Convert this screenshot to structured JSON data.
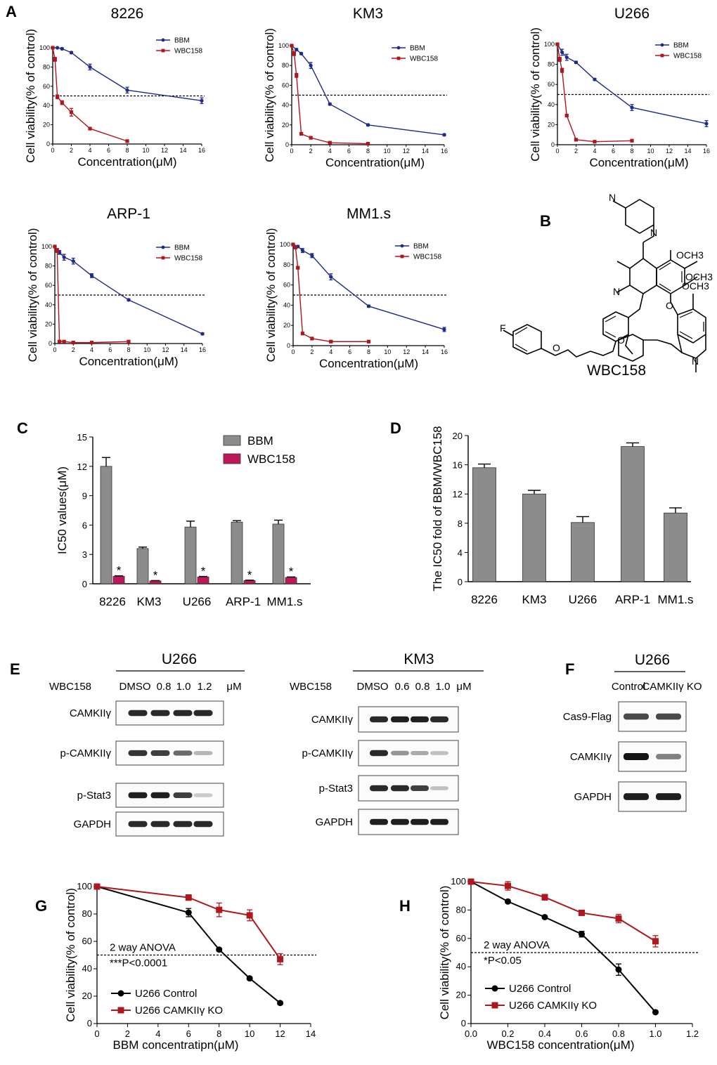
{
  "colors": {
    "bbm": "#1f2a8a",
    "wbc": "#b0161e",
    "bar_gray": "#8c8c8c",
    "bar_pink": "#c0175a",
    "ctrl": "#000000",
    "ko": "#b0161e"
  },
  "panel_letters": {
    "A": "A",
    "B": "B",
    "C": "C",
    "D": "D",
    "E": "E",
    "F": "F",
    "G": "G",
    "H": "H"
  },
  "chart_data": [
    {
      "id": "A1",
      "type": "line",
      "title": "8226",
      "xlabel": "Concentration(μM)",
      "ylabel": "Cell viability(% of control)",
      "xlim": [
        0,
        16
      ],
      "xticks": [
        0,
        2,
        4,
        6,
        8,
        10,
        12,
        14,
        16
      ],
      "ylim": [
        0,
        100
      ],
      "yticks": [
        0,
        20,
        40,
        60,
        80,
        100
      ],
      "hline": 50,
      "legend_position": "top-right",
      "series": [
        {
          "name": "BBM",
          "x": [
            0,
            0.5,
            1,
            2,
            4,
            8,
            16
          ],
          "y": [
            100,
            100,
            99,
            95,
            80,
            56,
            45
          ],
          "err": [
            0,
            0,
            1,
            1,
            3,
            3,
            3
          ]
        },
        {
          "name": "WBC158",
          "x": [
            0,
            0.25,
            0.5,
            1,
            2,
            4,
            8
          ],
          "y": [
            100,
            88,
            49,
            43,
            33,
            16,
            3
          ],
          "err": [
            0,
            2,
            2,
            2,
            4,
            1,
            1
          ]
        }
      ]
    },
    {
      "id": "A2",
      "type": "line",
      "title": "KM3",
      "xlabel": "Concentration(μM)",
      "ylabel": "Cell viability(% of control)",
      "xlim": [
        0,
        16
      ],
      "xticks": [
        0,
        2,
        4,
        6,
        8,
        10,
        12,
        14,
        16
      ],
      "ylim": [
        0,
        100
      ],
      "yticks": [
        0,
        20,
        40,
        60,
        80,
        100
      ],
      "hline": 50,
      "legend_position": "top-right",
      "series": [
        {
          "name": "BBM",
          "x": [
            0,
            0.5,
            1,
            2,
            4,
            8,
            16
          ],
          "y": [
            100,
            96,
            92,
            80,
            41,
            20,
            10
          ],
          "err": [
            0,
            1,
            1,
            3,
            1,
            1,
            1
          ]
        },
        {
          "name": "WBC158",
          "x": [
            0,
            0.25,
            0.5,
            1,
            2,
            4,
            8
          ],
          "y": [
            100,
            92,
            70,
            11,
            7,
            2,
            1
          ],
          "err": [
            0,
            2,
            2,
            1,
            1,
            1,
            1
          ]
        }
      ]
    },
    {
      "id": "A3",
      "type": "line",
      "title": "U266",
      "xlabel": "Concentration(μM)",
      "ylabel": "Cell viability(% of control)",
      "xlim": [
        0,
        16
      ],
      "xticks": [
        0,
        2,
        4,
        6,
        8,
        10,
        12,
        14,
        16
      ],
      "ylim": [
        0,
        100
      ],
      "yticks": [
        0,
        20,
        40,
        60,
        80,
        100
      ],
      "hline": 50,
      "legend_position": "top-right",
      "series": [
        {
          "name": "BBM",
          "x": [
            0,
            0.5,
            1,
            2,
            4,
            8,
            16
          ],
          "y": [
            100,
            92,
            87,
            82,
            65,
            37,
            21
          ],
          "err": [
            0,
            3,
            3,
            1,
            1,
            3,
            3
          ]
        },
        {
          "name": "WBC158",
          "x": [
            0,
            0.25,
            0.5,
            1,
            2,
            4,
            8
          ],
          "y": [
            100,
            85,
            74,
            29,
            5,
            3,
            4
          ],
          "err": [
            0,
            2,
            2,
            1,
            1,
            1,
            1
          ]
        }
      ]
    },
    {
      "id": "A4",
      "type": "line",
      "title": "ARP-1",
      "xlabel": "Concentration(μM)",
      "ylabel": "Cell viability(% of control)",
      "xlim": [
        0,
        16
      ],
      "xticks": [
        0,
        2,
        4,
        6,
        8,
        10,
        12,
        14,
        16
      ],
      "ylim": [
        0,
        100
      ],
      "yticks": [
        0,
        20,
        40,
        60,
        80,
        100
      ],
      "hline": 50,
      "legend_position": "top-right",
      "series": [
        {
          "name": "BBM",
          "x": [
            0,
            0.5,
            1,
            2,
            4,
            8,
            16
          ],
          "y": [
            100,
            94,
            89,
            85,
            70,
            45,
            10
          ],
          "err": [
            0,
            2,
            3,
            3,
            2,
            1,
            1
          ]
        },
        {
          "name": "WBC158",
          "x": [
            0,
            0.25,
            0.5,
            1,
            2,
            4,
            8
          ],
          "y": [
            100,
            96,
            2,
            2,
            1,
            1,
            2
          ],
          "err": [
            0,
            2,
            1,
            1,
            1,
            1,
            1
          ]
        }
      ]
    },
    {
      "id": "A5",
      "type": "line",
      "title": "MM1.s",
      "xlabel": "Concentration(μM)",
      "ylabel": "Cell viability(% of control)",
      "xlim": [
        0,
        16
      ],
      "xticks": [
        0,
        2,
        4,
        6,
        8,
        10,
        12,
        14,
        16
      ],
      "ylim": [
        0,
        100
      ],
      "yticks": [
        0,
        20,
        40,
        60,
        80,
        100
      ],
      "hline": 50,
      "legend_position": "top-right",
      "series": [
        {
          "name": "BBM",
          "x": [
            0,
            0.5,
            1,
            2,
            4,
            8,
            16
          ],
          "y": [
            100,
            98,
            94,
            89,
            68,
            39,
            16
          ],
          "err": [
            0,
            1,
            2,
            2,
            3,
            1,
            2
          ]
        },
        {
          "name": "WBC158",
          "x": [
            0,
            0.25,
            0.5,
            1,
            2,
            4,
            8
          ],
          "y": [
            100,
            97,
            77,
            12,
            7,
            4,
            4
          ],
          "err": [
            0,
            1,
            1,
            1,
            1,
            1,
            1
          ]
        }
      ]
    },
    {
      "id": "C",
      "type": "bar",
      "xlabel": "",
      "ylabel": "IC50 values(μM)",
      "ylim": [
        0,
        15
      ],
      "yticks": [
        0,
        3,
        6,
        9,
        12,
        15
      ],
      "legend_position": "top-right",
      "categories": [
        "8226",
        "KM3",
        "U266",
        "ARP-1",
        "MM1.s"
      ],
      "series": [
        {
          "name": "BBM",
          "values": [
            12.0,
            3.6,
            5.8,
            6.3,
            6.1
          ],
          "err": [
            0.9,
            0.15,
            0.6,
            0.15,
            0.4
          ]
        },
        {
          "name": "WBC158",
          "values": [
            0.77,
            0.3,
            0.7,
            0.34,
            0.65
          ],
          "err": [
            0.05,
            0.03,
            0.05,
            0.03,
            0.05
          ]
        }
      ],
      "annotations": [
        "*",
        "*",
        "*",
        "*",
        "*"
      ]
    },
    {
      "id": "D",
      "type": "bar",
      "xlabel": "",
      "ylabel": "The IC50 fold of BBM/WBC158",
      "ylim": [
        0,
        20
      ],
      "yticks": [
        0,
        4,
        8,
        12,
        16,
        20
      ],
      "categories": [
        "8226",
        "KM3",
        "U266",
        "ARP-1",
        "MM1.s"
      ],
      "values": [
        15.6,
        12.0,
        8.1,
        18.5,
        9.4
      ],
      "err": [
        0.5,
        0.5,
        0.8,
        0.5,
        0.7
      ]
    },
    {
      "id": "G",
      "type": "line",
      "xlabel": "BBM concentratipn(μM)",
      "ylabel": "Cell viability(% of control)",
      "xlim": [
        0,
        14
      ],
      "xticks": [
        0,
        2,
        4,
        6,
        8,
        10,
        12,
        14
      ],
      "ylim": [
        0,
        100
      ],
      "yticks": [
        0,
        20,
        40,
        60,
        80,
        100
      ],
      "hline": 50,
      "legend_position": "bottom-left",
      "annotations": [
        "2 way ANOVA",
        "***P<0.0001"
      ],
      "series": [
        {
          "name": "U266 Control",
          "x": [
            0,
            6,
            8,
            10,
            12
          ],
          "y": [
            100,
            81,
            54,
            33,
            15
          ],
          "err": [
            0,
            3,
            1,
            1,
            1
          ]
        },
        {
          "name": "U266 CAMKIIγ  KO",
          "x": [
            0,
            6,
            8,
            10,
            12
          ],
          "y": [
            100,
            92,
            83,
            79,
            47
          ],
          "err": [
            0,
            2,
            5,
            4,
            4
          ]
        }
      ]
    },
    {
      "id": "H",
      "type": "line",
      "xlabel": "WBC158 concentration(μM)",
      "ylabel": "Cell viability(% of control)",
      "xlim": [
        0,
        1.2
      ],
      "xticks": [
        "0.0",
        "0.2",
        "0.4",
        "0.6",
        "0.8",
        "1.0",
        "1.2"
      ],
      "ylim": [
        0,
        100
      ],
      "yticks": [
        0,
        20,
        40,
        60,
        80,
        100
      ],
      "hline": 50,
      "legend_position": "bottom-left",
      "annotations": [
        "2 way ANOVA",
        "*P<0.05"
      ],
      "series": [
        {
          "name": "U266 Control",
          "x": [
            0,
            0.2,
            0.4,
            0.6,
            0.8,
            1.0
          ],
          "y": [
            100,
            86,
            75,
            63,
            38,
            8
          ],
          "err": [
            0,
            1,
            1,
            2,
            4,
            1
          ]
        },
        {
          "name": "U266 CAMKIIγ  KO",
          "x": [
            0,
            0.2,
            0.4,
            0.6,
            0.8,
            1.0
          ],
          "y": [
            100,
            97,
            89,
            78,
            74,
            58
          ],
          "err": [
            0,
            3,
            2,
            1,
            3,
            4
          ]
        }
      ]
    }
  ],
  "structure": {
    "label": "WBC158",
    "atoms": [
      "F",
      "O",
      "O",
      "O",
      "N",
      "N",
      "N",
      "N",
      "OCH3",
      "OCH3",
      "OCH3"
    ]
  },
  "blots": {
    "E1": {
      "title": "U266",
      "treat_label": "WBC158",
      "conditions": [
        "DMSO",
        "0.8",
        "1.0",
        "1.2",
        "μM"
      ],
      "rows": [
        {
          "label": "CAMKIIγ",
          "intensity": [
            0.9,
            0.9,
            0.9,
            0.9
          ]
        },
        {
          "label": "p-CAMKIIγ",
          "intensity": [
            0.85,
            0.8,
            0.6,
            0.25
          ]
        },
        {
          "label": "p-Stat3",
          "intensity": [
            0.95,
            0.95,
            0.8,
            0.15
          ]
        },
        {
          "label": "GAPDH",
          "intensity": [
            0.9,
            0.9,
            0.9,
            0.9
          ]
        }
      ]
    },
    "E2": {
      "title": "KM3",
      "treat_label": "WBC158",
      "conditions": [
        "DMSO",
        "0.6",
        "0.8",
        "1.0",
        "μM"
      ],
      "rows": [
        {
          "label": "CAMKIIγ",
          "intensity": [
            0.9,
            0.95,
            0.95,
            0.9
          ]
        },
        {
          "label": "p-CAMKIIγ",
          "intensity": [
            0.9,
            0.4,
            0.3,
            0.2
          ]
        },
        {
          "label": "p-Stat3",
          "intensity": [
            0.9,
            0.9,
            0.8,
            0.2
          ]
        },
        {
          "label": "GAPDH",
          "intensity": [
            0.95,
            0.95,
            0.95,
            0.95
          ]
        }
      ]
    },
    "F": {
      "title": "U266",
      "conditions": [
        "Control",
        "CAMKIIγ KO"
      ],
      "rows": [
        {
          "label": "Cas9-Flag",
          "intensity": [
            0.75,
            0.75
          ]
        },
        {
          "label": "CAMKIIγ",
          "intensity": [
            1.0,
            0.5
          ]
        },
        {
          "label": "GAPDH",
          "intensity": [
            0.95,
            0.95
          ]
        }
      ]
    }
  }
}
